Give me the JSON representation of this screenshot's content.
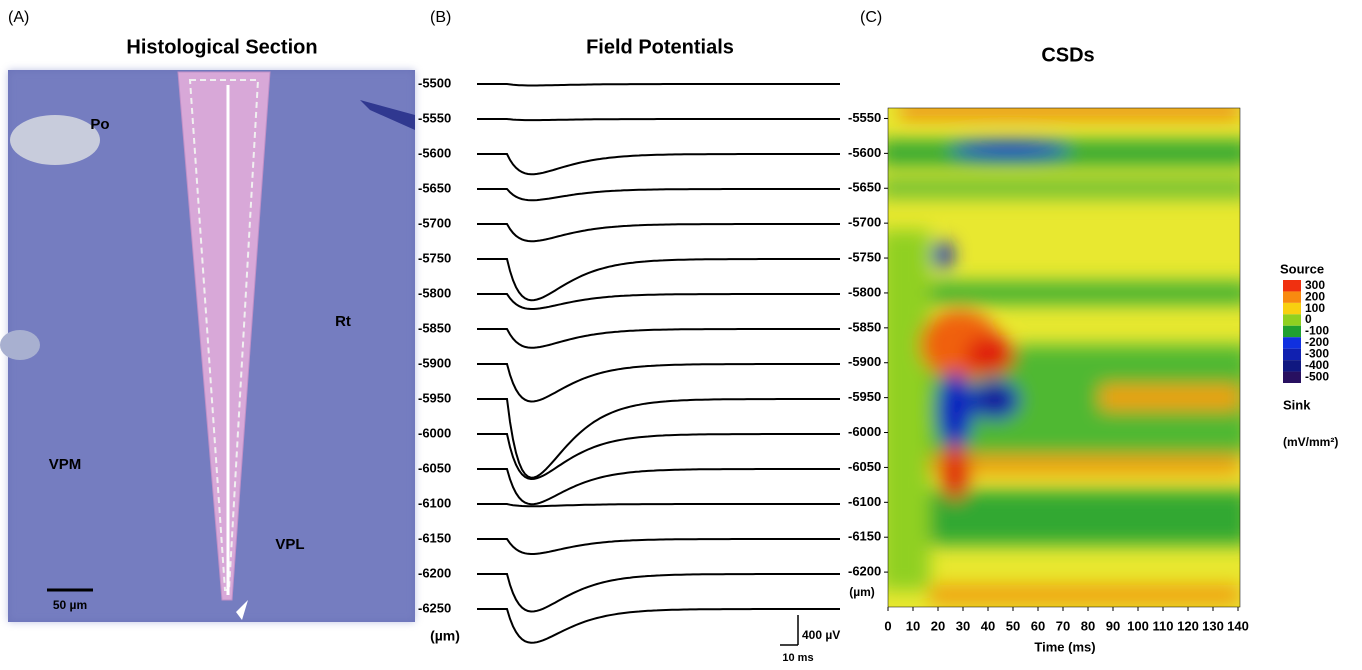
{
  "panel_a": {
    "letter": "(A)",
    "title": "Histological Section",
    "regions": [
      "Po",
      "Rt",
      "VPM",
      "VPL"
    ],
    "scale_bar": "50 µm"
  },
  "panel_b": {
    "letter": "(B)",
    "title": "Field Potentials",
    "unit": "(µm)",
    "traces": [
      {
        "depth": -5500,
        "amplitude": -20
      },
      {
        "depth": -5550,
        "amplitude": -15
      },
      {
        "depth": -5600,
        "amplitude": -270
      },
      {
        "depth": -5650,
        "amplitude": -150
      },
      {
        "depth": -5700,
        "amplitude": -230
      },
      {
        "depth": -5750,
        "amplitude": -550
      },
      {
        "depth": -5800,
        "amplitude": -200
      },
      {
        "depth": -5850,
        "amplitude": -250
      },
      {
        "depth": -5900,
        "amplitude": -500
      },
      {
        "depth": -5950,
        "amplitude": -1050
      },
      {
        "depth": -6000,
        "amplitude": -600
      },
      {
        "depth": -6050,
        "amplitude": -470
      },
      {
        "depth": -6100,
        "amplitude": -30
      },
      {
        "depth": -6150,
        "amplitude": -200
      },
      {
        "depth": -6200,
        "amplitude": -500
      },
      {
        "depth": -6250,
        "amplitude": -450
      }
    ],
    "scale_bar_v": "400 µV",
    "scale_bar_v_value": 400,
    "scale_bar_t": "10 ms"
  },
  "panel_c": {
    "letter": "(C)",
    "title": "CSDs",
    "unit": "(µm)",
    "xlabel": "Time (ms)",
    "xlim": [
      0,
      140
    ],
    "xticks": [
      0,
      10,
      20,
      30,
      40,
      50,
      60,
      70,
      80,
      90,
      100,
      110,
      120,
      130,
      140
    ],
    "ylim": [
      -5535,
      -6250
    ],
    "yticks": [
      -5550,
      -5600,
      -5650,
      -5700,
      -5750,
      -5800,
      -5850,
      -5900,
      -5950,
      -6000,
      -6050,
      -6100,
      -6150,
      -6200
    ],
    "colorbar": {
      "top_label": "Source",
      "bottom_label": "Sink",
      "unit": "(mV/mm²)",
      "levels": [
        300,
        200,
        100,
        0,
        -100,
        -200,
        -300,
        -400,
        -500
      ],
      "colors": [
        "#f03010",
        "#f88a10",
        "#f8d010",
        "#90d020",
        "#20a030",
        "#1030e0",
        "#1020b0",
        "#101880",
        "#281060"
      ]
    }
  }
}
